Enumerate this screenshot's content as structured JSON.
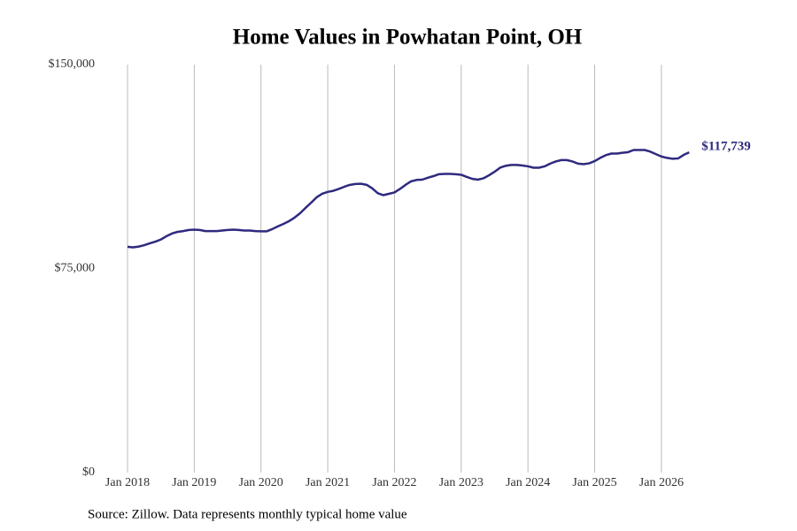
{
  "chart_data": {
    "type": "line",
    "title": "Home Values in Powhatan Point, OH",
    "source": "Source: Zillow. Data represents monthly typical home value",
    "color": "#2e2a7f",
    "grid": "x",
    "ylim": [
      0,
      150000
    ],
    "yticks": [
      {
        "value": 0,
        "label": "$0"
      },
      {
        "value": 75000,
        "label": "$75,000"
      },
      {
        "value": 150000,
        "label": "$150,000"
      }
    ],
    "xticks": [
      {
        "value": "2018-01",
        "label": "Jan 2018"
      },
      {
        "value": "2019-01",
        "label": "Jan 2019"
      },
      {
        "value": "2020-01",
        "label": "Jan 2020"
      },
      {
        "value": "2021-01",
        "label": "Jan 2021"
      },
      {
        "value": "2022-01",
        "label": "Jan 2022"
      },
      {
        "value": "2023-01",
        "label": "Jan 2023"
      },
      {
        "value": "2024-01",
        "label": "Jan 2024"
      },
      {
        "value": "2025-01",
        "label": "Jan 2025"
      },
      {
        "value": "2026-01",
        "label": "Jan 2026"
      }
    ],
    "x": [
      "2018-01",
      "2018-02",
      "2018-03",
      "2018-04",
      "2018-05",
      "2018-06",
      "2018-07",
      "2018-08",
      "2018-09",
      "2018-10",
      "2018-11",
      "2018-12",
      "2019-01",
      "2019-02",
      "2019-03",
      "2019-04",
      "2019-05",
      "2019-06",
      "2019-07",
      "2019-08",
      "2019-09",
      "2019-10",
      "2019-11",
      "2019-12",
      "2020-01",
      "2020-02",
      "2020-03",
      "2020-04",
      "2020-05",
      "2020-06",
      "2020-07",
      "2020-08",
      "2020-09",
      "2020-10",
      "2020-11",
      "2020-12",
      "2021-01",
      "2021-02",
      "2021-03",
      "2021-04",
      "2021-05",
      "2021-06",
      "2021-07",
      "2021-08",
      "2021-09",
      "2021-10",
      "2021-11",
      "2021-12",
      "2022-01",
      "2022-02",
      "2022-03",
      "2022-04",
      "2022-05",
      "2022-06",
      "2022-07",
      "2022-08",
      "2022-09",
      "2022-10",
      "2022-11",
      "2022-12",
      "2023-01",
      "2023-02",
      "2023-03",
      "2023-04",
      "2023-05",
      "2023-06",
      "2023-07",
      "2023-08",
      "2023-09",
      "2023-10",
      "2023-11",
      "2023-12",
      "2024-01",
      "2024-02",
      "2024-03",
      "2024-04",
      "2024-05",
      "2024-06",
      "2024-07",
      "2024-08",
      "2024-09",
      "2024-10",
      "2024-11",
      "2024-12",
      "2025-01",
      "2025-02",
      "2025-03",
      "2025-04",
      "2025-05",
      "2025-06",
      "2025-07",
      "2025-08",
      "2025-09",
      "2025-10",
      "2025-11",
      "2025-12",
      "2026-01",
      "2026-02",
      "2026-03",
      "2026-04",
      "2026-05",
      "2026-06"
    ],
    "values": [
      83000,
      82800,
      83100,
      83600,
      84300,
      84900,
      85700,
      86900,
      87900,
      88500,
      88800,
      89200,
      89300,
      89200,
      88800,
      88800,
      88800,
      89000,
      89200,
      89300,
      89200,
      89000,
      89000,
      88800,
      88700,
      88700,
      89500,
      90500,
      91400,
      92400,
      93700,
      95300,
      97300,
      99200,
      101200,
      102500,
      103200,
      103600,
      104300,
      105100,
      105800,
      106100,
      106200,
      105800,
      104500,
      102700,
      102000,
      102500,
      103000,
      104300,
      105800,
      107100,
      107600,
      107700,
      108400,
      109000,
      109700,
      109800,
      109800,
      109700,
      109500,
      108700,
      108000,
      107700,
      108200,
      109300,
      110600,
      112100,
      112800,
      113100,
      113100,
      112900,
      112600,
      112100,
      112100,
      112600,
      113600,
      114400,
      114900,
      114900,
      114400,
      113600,
      113400,
      113700,
      114500,
      115700,
      116700,
      117300,
      117300,
      117600,
      117800,
      118600,
      118600,
      118600,
      118000,
      117100,
      116200,
      115700,
      115400,
      115500,
      116800,
      117739
    ],
    "value_labels": [
      null,
      null,
      null,
      null,
      null,
      null,
      null,
      null,
      null,
      null,
      null,
      null,
      null,
      null,
      null,
      null,
      null,
      null,
      null,
      null,
      null,
      null,
      null,
      null,
      null,
      null,
      null,
      null,
      null,
      null,
      null,
      null,
      null,
      null,
      null,
      null,
      null,
      null,
      null,
      null,
      null,
      null,
      null,
      null,
      null,
      null,
      null,
      null,
      null,
      null,
      null,
      null,
      null,
      null,
      null,
      null,
      null,
      null,
      null,
      null,
      null,
      null,
      null,
      null,
      null,
      null,
      null,
      null,
      null,
      null,
      null,
      null,
      null,
      null,
      null,
      null,
      null,
      null,
      null,
      null,
      null,
      null,
      null,
      null,
      null,
      null,
      null,
      null,
      null,
      null,
      null,
      null,
      null,
      null,
      null,
      null,
      null,
      null,
      null,
      null,
      null,
      "$117,739"
    ]
  }
}
